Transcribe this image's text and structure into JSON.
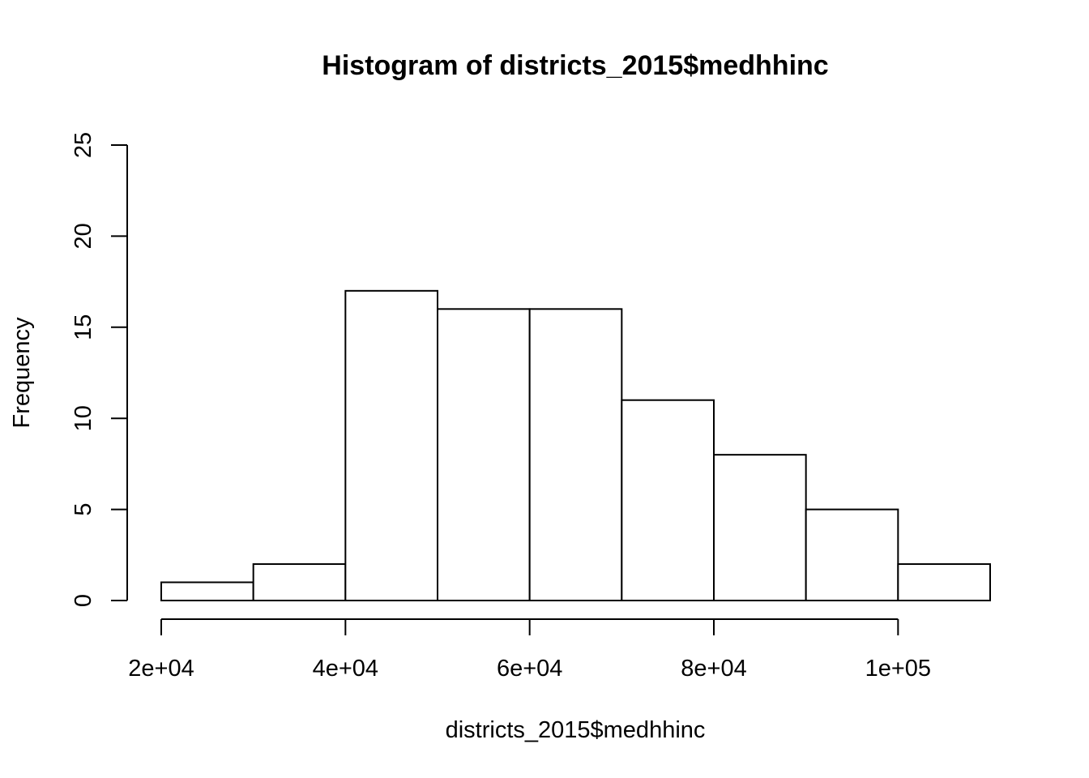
{
  "chart_data": {
    "type": "bar",
    "title": "Histogram of districts_2015$medhhinc",
    "xlabel": "districts_2015$medhhinc",
    "ylabel": "Frequency",
    "bins": [
      {
        "x0": 20000,
        "x1": 30000,
        "count": 1
      },
      {
        "x0": 30000,
        "x1": 40000,
        "count": 2
      },
      {
        "x0": 40000,
        "x1": 50000,
        "count": 17
      },
      {
        "x0": 50000,
        "x1": 60000,
        "count": 16
      },
      {
        "x0": 60000,
        "x1": 70000,
        "count": 16
      },
      {
        "x0": 70000,
        "x1": 80000,
        "count": 11
      },
      {
        "x0": 80000,
        "x1": 90000,
        "count": 8
      },
      {
        "x0": 90000,
        "x1": 100000,
        "count": 5
      },
      {
        "x0": 100000,
        "x1": 110000,
        "count": 2
      }
    ],
    "x_ticks": [
      {
        "value": 20000,
        "label": "2e+04"
      },
      {
        "value": 40000,
        "label": "4e+04"
      },
      {
        "value": 60000,
        "label": "6e+04"
      },
      {
        "value": 80000,
        "label": "8e+04"
      },
      {
        "value": 100000,
        "label": "1e+05"
      }
    ],
    "y_ticks": [
      {
        "value": 0,
        "label": "0"
      },
      {
        "value": 5,
        "label": "5"
      },
      {
        "value": 10,
        "label": "10"
      },
      {
        "value": 15,
        "label": "15"
      },
      {
        "value": 20,
        "label": "20"
      },
      {
        "value": 25,
        "label": "25"
      }
    ],
    "xlim": [
      20000,
      110000
    ],
    "ylim": [
      0,
      25
    ],
    "grid": false,
    "legend": "none"
  }
}
